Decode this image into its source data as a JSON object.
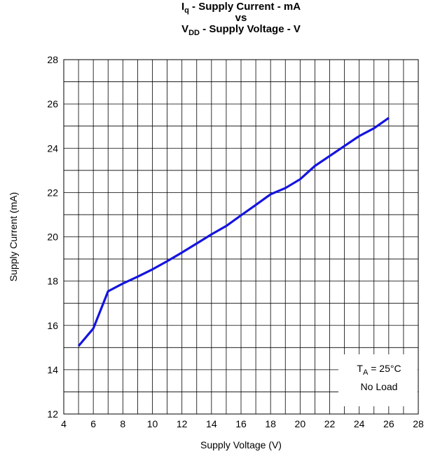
{
  "chart_data": {
    "type": "line",
    "title": [
      [
        "I",
        "q",
        " - Supply Current - mA"
      ],
      [
        "vs"
      ],
      [
        "V",
        "DD",
        " - Supply Voltage - V"
      ]
    ],
    "x_label": "Supply Voltage (V)",
    "y_label": "Supply Current (mA)",
    "annotation": [
      [
        "T",
        "A",
        " = 25°C"
      ],
      [
        "No Load"
      ]
    ],
    "x": [
      5,
      6,
      7,
      8,
      9,
      10,
      11,
      12,
      13,
      14,
      15,
      16,
      17,
      18,
      19,
      20,
      21,
      22,
      23,
      24,
      25,
      26
    ],
    "series": [
      {
        "name": "Supply Current",
        "color": "#1414e0",
        "values": [
          15.07,
          15.86,
          17.54,
          17.89,
          18.2,
          18.53,
          18.9,
          19.29,
          19.7,
          20.11,
          20.49,
          20.97,
          21.44,
          21.92,
          22.2,
          22.6,
          23.2,
          23.65,
          24.1,
          24.55,
          24.9,
          25.37
        ]
      }
    ],
    "xlim": [
      4,
      28
    ],
    "xticks": [
      4,
      6,
      8,
      10,
      12,
      14,
      16,
      18,
      20,
      22,
      24,
      26,
      28
    ],
    "minor_xticks": [
      5,
      7,
      9,
      11,
      13,
      15,
      17,
      19,
      21,
      23,
      25,
      27
    ],
    "ylim": [
      12,
      28
    ],
    "yticks": [
      12,
      14,
      16,
      18,
      20,
      22,
      24,
      26,
      28
    ],
    "minor_yticks": [
      13,
      15,
      17,
      19,
      21,
      23,
      25,
      27
    ],
    "grid": true
  }
}
